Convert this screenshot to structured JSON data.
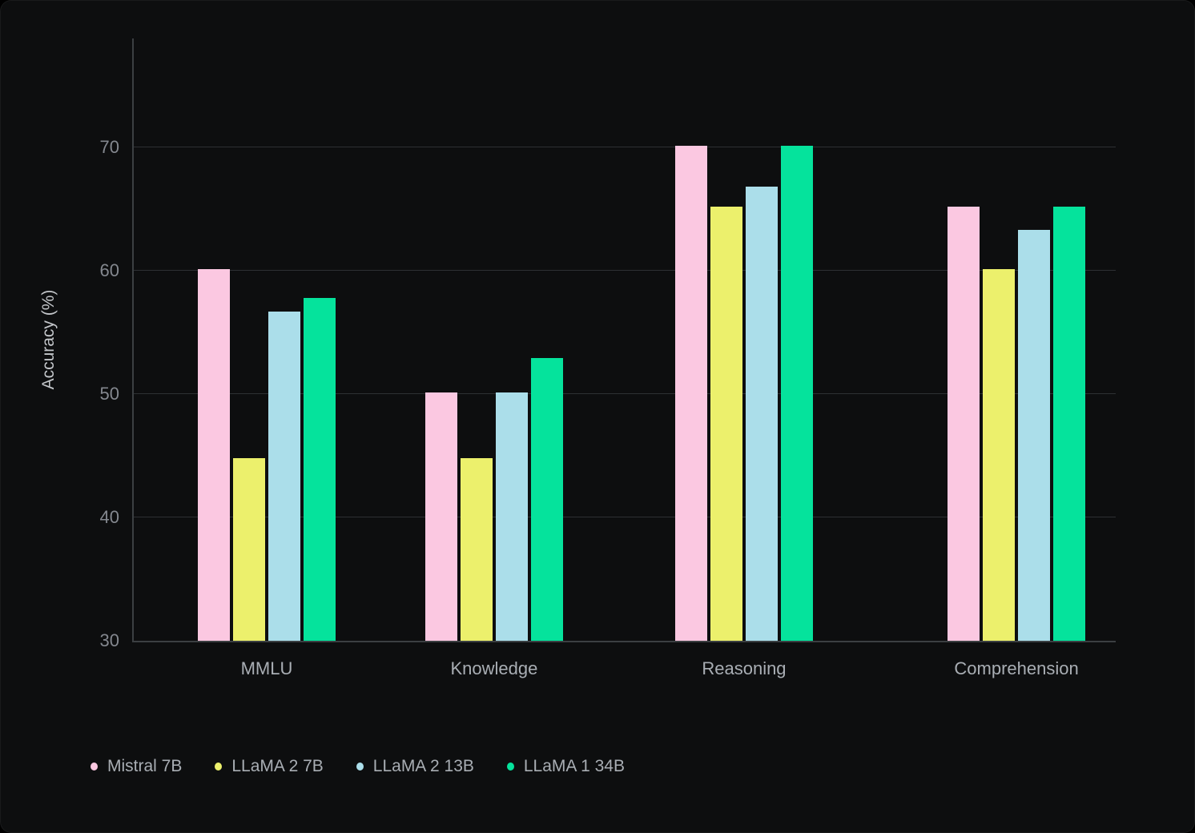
{
  "chart_data": {
    "type": "bar",
    "title": "",
    "xlabel": "",
    "ylabel": "Accuracy (%)",
    "ylim": [
      30,
      70
    ],
    "yticks": [
      30,
      40,
      50,
      60,
      70
    ],
    "grid": "horizontal",
    "legend_position": "bottom-left",
    "categories": [
      "MMLU",
      "Knowledge",
      "Reasoning",
      "Comprehension"
    ],
    "series": [
      {
        "name": "Mistral 7B",
        "color": "#fbc8e1",
        "values": [
          60.1,
          50.1,
          70.1,
          65.2
        ]
      },
      {
        "name": "LLaMA 2 7B",
        "color": "#ecf06c",
        "values": [
          44.8,
          44.8,
          65.2,
          60.1
        ]
      },
      {
        "name": "LLaMA 2 13B",
        "color": "#abdeea",
        "values": [
          56.7,
          50.1,
          66.8,
          63.3
        ]
      },
      {
        "name": "LLaMA 1 34B",
        "color": "#05e39c",
        "values": [
          57.8,
          52.9,
          70.1,
          65.2
        ]
      }
    ]
  },
  "colors": {
    "card_background": "#0d0e0f",
    "gridline": "#2d3033",
    "axis_line": "#3b3f42",
    "tick_label": "#84888f",
    "category_label": "#a9aeb4",
    "axis_title": "#c3c6ca",
    "legend_text": "#a9aeb4"
  }
}
